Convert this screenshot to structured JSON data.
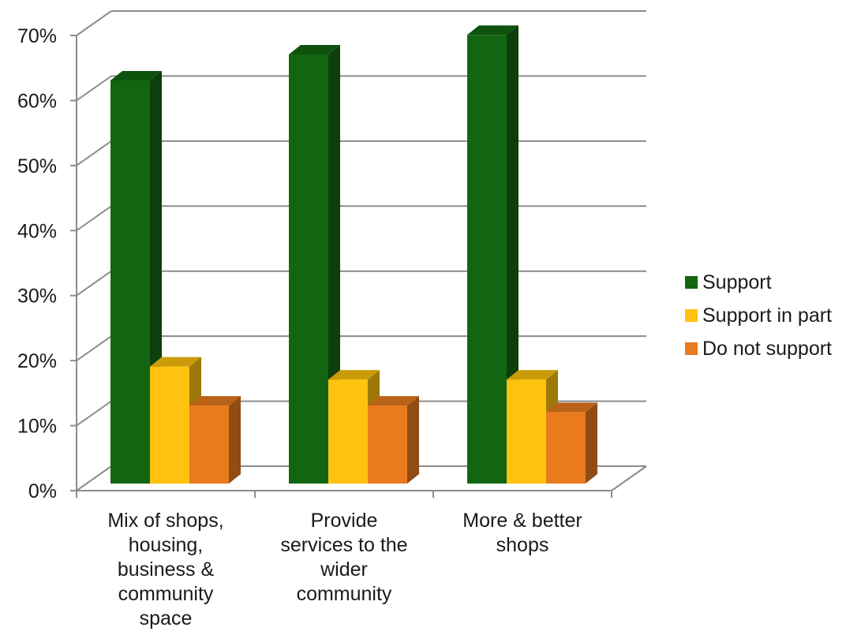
{
  "chart_data": {
    "type": "bar",
    "title": "",
    "xlabel": "",
    "ylabel": "",
    "ylim": [
      0,
      70
    ],
    "ytick_step": 10,
    "ytick_format": "percent",
    "grid": true,
    "legend_position": "right",
    "categories": [
      [
        "Mix of shops,",
        "housing,",
        "business &",
        "community",
        "space"
      ],
      [
        "Provide",
        "services to the",
        "wider",
        "community"
      ],
      [
        "More & better",
        "shops"
      ]
    ],
    "series": [
      {
        "name": "Support",
        "color": "#136611",
        "values": [
          62,
          66,
          69
        ]
      },
      {
        "name": "Support in part",
        "color": "#FFC20E",
        "values": [
          18,
          16,
          16
        ]
      },
      {
        "name": "Do not support",
        "color": "#E97A1E",
        "values": [
          12,
          12,
          11
        ]
      }
    ]
  }
}
